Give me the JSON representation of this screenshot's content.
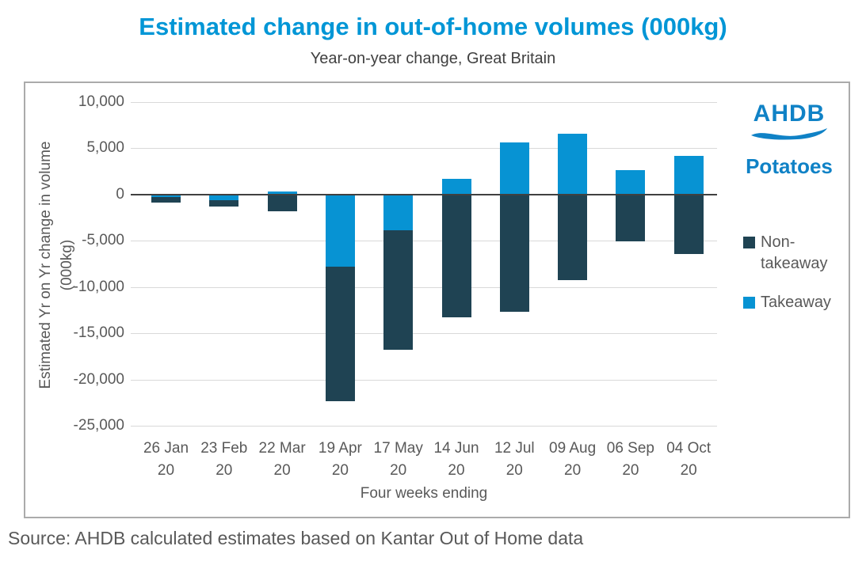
{
  "title": "Estimated change in out-of-home volumes (000kg)",
  "subtitle": "Year-on-year change, Great Britain",
  "source": "Source: AHDB calculated estimates based on Kantar Out of Home data",
  "logo": {
    "brand": "AHDB",
    "sector": "Potatoes"
  },
  "colors": {
    "title_blue": "#0096D6",
    "logo_blue": "#1082C6",
    "takeaway_blue": "#0793D3",
    "non_takeaway_dark": "#1F4353",
    "gridline": "#D9D9D9",
    "zero_line": "#404040",
    "axis_text": "#595959",
    "subtitle_text": "#404040",
    "border_gray": "#ABABAB"
  },
  "chart_data": {
    "type": "bar",
    "stacked": true,
    "title": "Estimated change in out-of-home volumes (000kg)",
    "subtitle": "Year-on-year change, Great Britain",
    "xlabel": "Four weeks ending",
    "ylabel": "Estimated Yr on Yr change in volume (000kg)",
    "ylabel_lines": [
      "Estimated Yr on Yr change in volume",
      "(000kg)"
    ],
    "ylim": [
      -25000,
      10000
    ],
    "ytick_step": 5000,
    "yticks": [
      10000,
      5000,
      0,
      -5000,
      -10000,
      -15000,
      -20000,
      -25000
    ],
    "yticks_labels": [
      "10,000",
      "5,000",
      "0",
      "-5,000",
      "-10,000",
      "-15,000",
      "-20,000",
      "-25,000"
    ],
    "categories": [
      "26 Jan 20",
      "23 Feb 20",
      "22 Mar 20",
      "19 Apr 20",
      "17 May 20",
      "14 Jun 20",
      "12 Jul 20",
      "09 Aug 20",
      "06 Sep 20",
      "04 Oct 20"
    ],
    "series": [
      {
        "name": "Non-takeaway",
        "color_key": "non_takeaway_dark",
        "values": [
          -600,
          -700,
          -1800,
          -14500,
          -12900,
          -13300,
          -12700,
          -9300,
          -5100,
          -6400
        ]
      },
      {
        "name": "Takeaway",
        "color_key": "takeaway_blue",
        "values": [
          -300,
          -600,
          300,
          -7800,
          -3900,
          1700,
          5600,
          6600,
          2600,
          4200
        ]
      }
    ],
    "grid": true,
    "legend_position": "right",
    "stacking_note": "Takeaway segment is drawn adjacent to the zero baseline; Non-takeaway stacks beyond it when both share a sign"
  }
}
